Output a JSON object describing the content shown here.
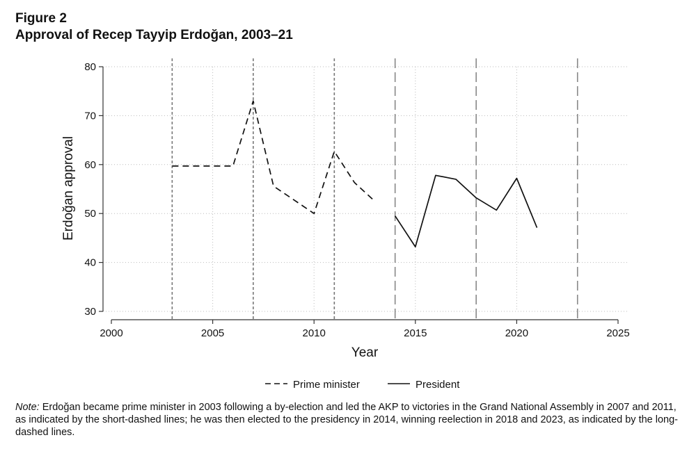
{
  "figure_label": "Figure 2",
  "title": "Approval of Recep Tayyip Erdoğan, 2003–21",
  "note_prefix": "Note:",
  "note_text": " Erdoğan became prime minister in 2003 following a by-election and led the AKP to victories in the Grand National Assembly in 2007 and 2011, as indicated by the short-dashed lines; he was then elected to the presidency in 2014, winning reelection in 2018 and 2023, as indicated by the long-dashed lines.",
  "chart_data": {
    "type": "line",
    "xlabel": "Year",
    "ylabel": "Erdoğan approval",
    "xlim": [
      2000,
      2025
    ],
    "ylim": [
      30,
      80
    ],
    "xticks": [
      2000,
      2005,
      2010,
      2015,
      2020,
      2025
    ],
    "yticks": [
      30,
      40,
      50,
      60,
      70,
      80
    ],
    "grid": "horizontal dotted",
    "legend_position": "bottom",
    "series": [
      {
        "name": "Prime minister",
        "style": "dashed",
        "x": [
          2003,
          2006,
          2007,
          2008,
          2010,
          2011,
          2012,
          2013
        ],
        "y": [
          59.7,
          59.7,
          73,
          55.6,
          50,
          62.7,
          56.3,
          52.5
        ]
      },
      {
        "name": "President",
        "style": "solid",
        "x": [
          2014,
          2015,
          2016,
          2017,
          2018,
          2019,
          2020,
          2021
        ],
        "y": [
          49.5,
          43.2,
          57.8,
          57,
          53.2,
          50.7,
          57.2,
          47.1
        ]
      }
    ],
    "reference_lines": {
      "short_dashed": [
        2003,
        2007,
        2011
      ],
      "long_dashed": [
        2014,
        2018,
        2023
      ]
    }
  }
}
